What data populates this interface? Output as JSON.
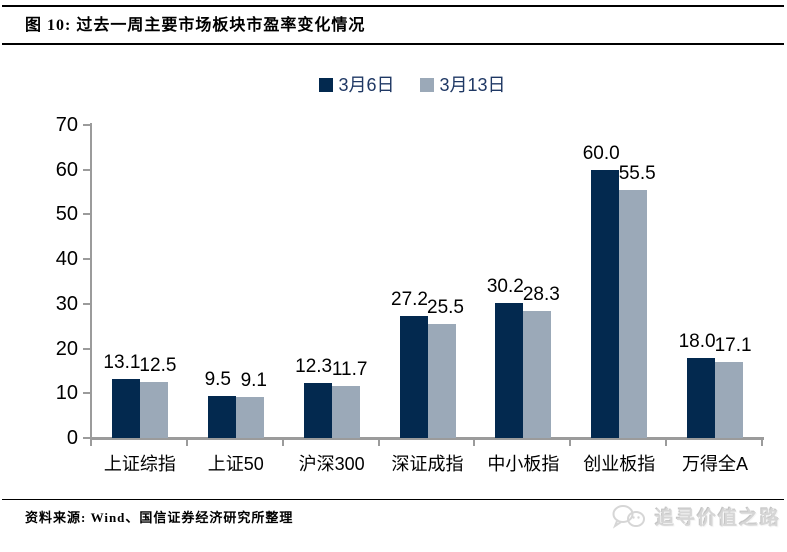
{
  "title": "图 10: 过去一周主要市场板块市盈率变化情况",
  "colors": {
    "series1": "#03294F",
    "series2": "#9BA9B8",
    "axis": "#9B9B9B",
    "label_text": "#000000",
    "legend_text": "#1F3864",
    "watermark_gray": "#D6D6D6"
  },
  "chart_data": {
    "type": "bar",
    "categories": [
      "上证综指",
      "上证50",
      "沪深300",
      "深证成指",
      "中小板指",
      "创业板指",
      "万得全A"
    ],
    "series": [
      {
        "name": "3月6日",
        "values": [
          13.1,
          9.5,
          12.3,
          27.2,
          30.2,
          60.0,
          18.0
        ]
      },
      {
        "name": "3月13日",
        "values": [
          12.5,
          9.1,
          11.7,
          25.5,
          28.3,
          55.5,
          17.1
        ]
      }
    ],
    "value_label_decimals": 1,
    "ylim": [
      0,
      70
    ],
    "yticks": [
      0,
      10,
      20,
      30,
      40,
      50,
      60,
      70
    ],
    "grid": false,
    "legend_position": "top"
  },
  "footer": {
    "source": "资料来源: Wind、国信证券经济研究所整理"
  },
  "watermark": {
    "text": "追寻价值之路",
    "icon": "chat-bubbles-logo"
  }
}
